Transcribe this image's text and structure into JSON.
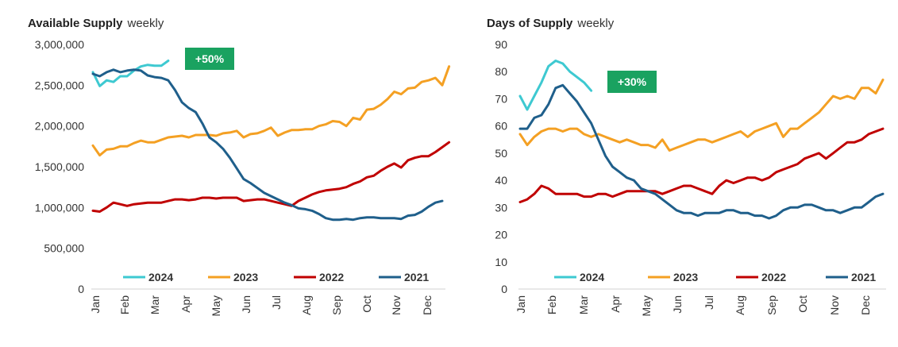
{
  "chart_data": [
    {
      "type": "line",
      "title": "Available Supply",
      "subtitle": "weekly",
      "ylim": [
        0,
        3000000
      ],
      "y_ticks": [
        0,
        500000,
        1000000,
        1500000,
        2000000,
        2500000,
        3000000
      ],
      "y_tick_labels": [
        "0",
        "500,000",
        "1,000,000",
        "1,500,000",
        "2,000,000",
        "2,500,000",
        "3,000,000"
      ],
      "x_ticks": [
        "Jan",
        "Feb",
        "Mar",
        "Apr",
        "May",
        "Jun",
        "Jul",
        "Aug",
        "Sep",
        "Oct",
        "Nov",
        "Dec"
      ],
      "grid": false,
      "legend_position": "bottom",
      "annotation": {
        "text": "+50%",
        "color": "#1aa260"
      },
      "series": [
        {
          "name": "2024",
          "color": "#3ec9d1",
          "values": [
            2660000,
            2490000,
            2560000,
            2540000,
            2610000,
            2610000,
            2680000,
            2730000,
            2750000,
            2740000,
            2740000,
            2800000
          ]
        },
        {
          "name": "2023",
          "color": "#f4a023",
          "values": [
            1760000,
            1640000,
            1710000,
            1720000,
            1750000,
            1750000,
            1790000,
            1820000,
            1800000,
            1800000,
            1830000,
            1860000,
            1870000,
            1880000,
            1860000,
            1890000,
            1890000,
            1890000,
            1880000,
            1910000,
            1920000,
            1940000,
            1860000,
            1900000,
            1910000,
            1940000,
            1980000,
            1880000,
            1920000,
            1950000,
            1950000,
            1960000,
            1960000,
            2000000,
            2020000,
            2060000,
            2050000,
            2000000,
            2100000,
            2080000,
            2200000,
            2210000,
            2260000,
            2330000,
            2420000,
            2390000,
            2460000,
            2470000,
            2540000,
            2560000,
            2590000,
            2500000,
            2730000
          ]
        },
        {
          "name": "2022",
          "color": "#c00000",
          "values": [
            960000,
            950000,
            1000000,
            1060000,
            1040000,
            1020000,
            1040000,
            1050000,
            1060000,
            1060000,
            1060000,
            1080000,
            1100000,
            1100000,
            1090000,
            1100000,
            1120000,
            1120000,
            1110000,
            1120000,
            1120000,
            1120000,
            1080000,
            1090000,
            1100000,
            1100000,
            1080000,
            1060000,
            1040000,
            1020000,
            1080000,
            1120000,
            1160000,
            1190000,
            1210000,
            1220000,
            1230000,
            1250000,
            1290000,
            1320000,
            1370000,
            1390000,
            1450000,
            1500000,
            1540000,
            1490000,
            1580000,
            1610000,
            1630000,
            1630000,
            1680000,
            1740000,
            1800000
          ]
        },
        {
          "name": "2021",
          "color": "#1f5f8b",
          "values": [
            2640000,
            2610000,
            2660000,
            2690000,
            2660000,
            2680000,
            2690000,
            2680000,
            2620000,
            2600000,
            2590000,
            2560000,
            2440000,
            2290000,
            2220000,
            2170000,
            2030000,
            1860000,
            1800000,
            1720000,
            1610000,
            1480000,
            1350000,
            1300000,
            1240000,
            1180000,
            1140000,
            1100000,
            1060000,
            1030000,
            990000,
            980000,
            960000,
            920000,
            870000,
            850000,
            850000,
            860000,
            850000,
            870000,
            880000,
            880000,
            870000,
            870000,
            870000,
            860000,
            900000,
            910000,
            950000,
            1010000,
            1060000,
            1080000
          ]
        }
      ]
    },
    {
      "type": "line",
      "title": "Days of Supply",
      "subtitle": "weekly",
      "ylim": [
        0,
        90
      ],
      "y_ticks": [
        0,
        10,
        20,
        30,
        40,
        50,
        60,
        70,
        80,
        90
      ],
      "y_tick_labels": [
        "0",
        "10",
        "20",
        "30",
        "40",
        "50",
        "60",
        "70",
        "80",
        "90"
      ],
      "x_ticks": [
        "Jan",
        "Feb",
        "Mar",
        "Apr",
        "May",
        "Jun",
        "Jul",
        "Aug",
        "Sep",
        "Oct",
        "Nov",
        "Dec"
      ],
      "grid": false,
      "legend_position": "bottom",
      "annotation": {
        "text": "+30%",
        "color": "#1aa260"
      },
      "series": [
        {
          "name": "2024",
          "color": "#3ec9d1",
          "values": [
            71,
            66,
            71,
            76,
            82,
            84,
            83,
            80,
            78,
            76,
            73
          ]
        },
        {
          "name": "2023",
          "color": "#f4a023",
          "values": [
            57,
            53,
            56,
            58,
            59,
            59,
            58,
            59,
            59,
            57,
            56,
            57,
            56,
            55,
            54,
            55,
            54,
            53,
            53,
            52,
            55,
            51,
            52,
            53,
            54,
            55,
            55,
            54,
            55,
            56,
            57,
            58,
            56,
            58,
            59,
            60,
            61,
            56,
            59,
            59,
            61,
            63,
            65,
            68,
            71,
            70,
            71,
            70,
            74,
            74,
            72,
            77
          ]
        },
        {
          "name": "2022",
          "color": "#c00000",
          "values": [
            32,
            33,
            35,
            38,
            37,
            35,
            35,
            35,
            35,
            34,
            34,
            35,
            35,
            34,
            35,
            36,
            36,
            36,
            36,
            36,
            35,
            36,
            37,
            38,
            38,
            37,
            36,
            35,
            38,
            40,
            39,
            40,
            41,
            41,
            40,
            41,
            43,
            44,
            45,
            46,
            48,
            49,
            50,
            48,
            50,
            52,
            54,
            54,
            55,
            57,
            58,
            59
          ]
        },
        {
          "name": "2021",
          "color": "#1f5f8b",
          "values": [
            59,
            59,
            63,
            64,
            68,
            74,
            75,
            72,
            69,
            65,
            61,
            55,
            49,
            45,
            43,
            41,
            40,
            37,
            36,
            35,
            33,
            31,
            29,
            28,
            28,
            27,
            28,
            28,
            28,
            29,
            29,
            28,
            28,
            27,
            27,
            26,
            27,
            29,
            30,
            30,
            31,
            31,
            30,
            29,
            29,
            28,
            29,
            30,
            30,
            32,
            34,
            35
          ]
        }
      ]
    }
  ]
}
